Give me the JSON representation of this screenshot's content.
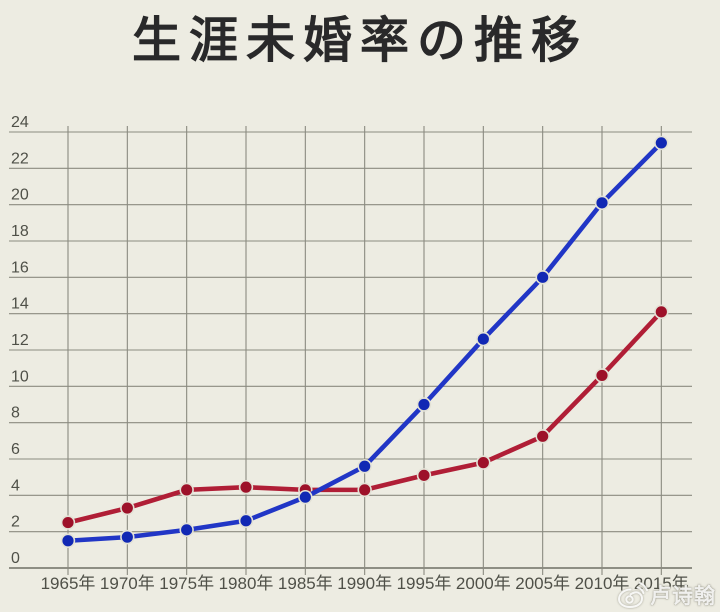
{
  "title": "生涯未婚率の推移",
  "watermark": {
    "icon": "weibo-eye-icon",
    "text": "卢诗翰"
  },
  "colors": {
    "background": "#edece2",
    "grid": "#8b8b80",
    "axis": "#6e6e64",
    "tick_label": "#4f5048",
    "title_text": "#29292a",
    "blue_line": "#2136c6",
    "blue_marker": "#1128b4",
    "red_line": "#b01e36",
    "red_marker": "#9d1129",
    "marker_halo": "#e3e2d6",
    "watermark_text": "#ffffff"
  },
  "chart_data": {
    "type": "line",
    "title": "生涯未婚率の推移",
    "categories": [
      "1965年",
      "1970年",
      "1975年",
      "1980年",
      "1985年",
      "1990年",
      "1995年",
      "2000年",
      "2005年",
      "2010年",
      "2015年"
    ],
    "series": [
      {
        "name": "blue-line",
        "color": "#2136c6",
        "marker_color": "#1128b4",
        "values": [
          1.5,
          1.7,
          2.1,
          2.6,
          3.9,
          5.6,
          9.0,
          12.6,
          16.0,
          20.1,
          23.4
        ]
      },
      {
        "name": "red-line",
        "color": "#b01e36",
        "marker_color": "#9d1129",
        "values": [
          2.5,
          3.3,
          4.3,
          4.45,
          4.3,
          4.3,
          5.1,
          5.8,
          7.25,
          10.6,
          14.1
        ]
      }
    ],
    "xlabel": "",
    "ylabel": "",
    "ylim": [
      0,
      24
    ],
    "yticks": [
      0,
      2,
      4,
      6,
      8,
      10,
      12,
      14,
      16,
      18,
      20,
      22,
      24
    ],
    "grid": true,
    "legend": "none"
  }
}
